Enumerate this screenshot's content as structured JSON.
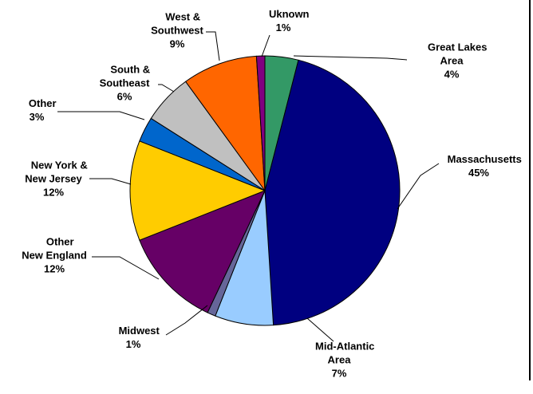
{
  "chart_data": {
    "type": "pie",
    "title": "",
    "start_angle_deg": 0,
    "direction": "clockwise",
    "slices": [
      {
        "label": "Great Lakes\nArea",
        "display_value": "4%",
        "value": 4,
        "color": "#339966"
      },
      {
        "label": "Massachusetts",
        "display_value": "45%",
        "value": 45,
        "color": "#000080"
      },
      {
        "label": "Mid-Atlantic\nArea",
        "display_value": "7%",
        "value": 7,
        "color": "#99CCFF"
      },
      {
        "label": "Midwest",
        "display_value": "1%",
        "value": 1,
        "color": "#666699"
      },
      {
        "label": "Other\nNew England",
        "display_value": "12%",
        "value": 12,
        "color": "#660066"
      },
      {
        "label": "New York &\nNew Jersey",
        "display_value": "12%",
        "value": 12,
        "color": "#FFCC00"
      },
      {
        "label": "Other",
        "display_value": "3%",
        "value": 3,
        "color": "#0066CC"
      },
      {
        "label": "South &\nSoutheast",
        "display_value": "6%",
        "value": 6,
        "color": "#C0C0C0"
      },
      {
        "label": "West &\nSouthwest",
        "display_value": "9%",
        "value": 9,
        "color": "#FF6600"
      },
      {
        "label": "Uknown",
        "display_value": "1%",
        "value": 1,
        "color": "#800080"
      }
    ]
  }
}
